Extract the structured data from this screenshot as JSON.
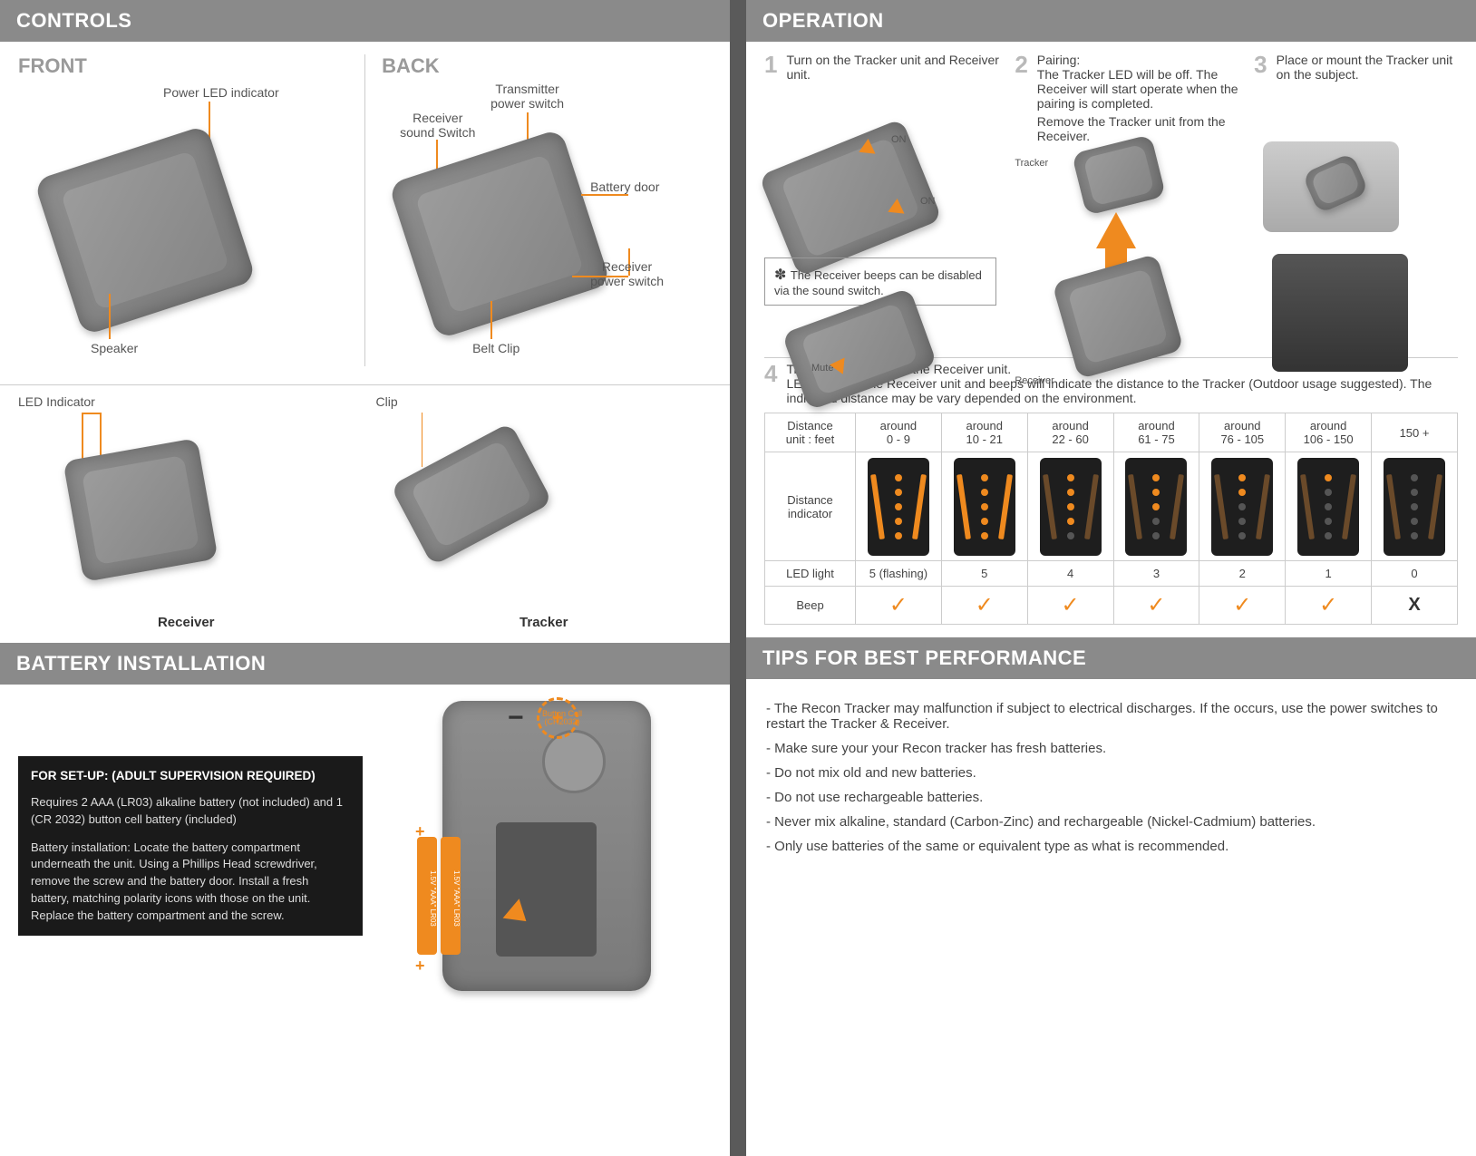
{
  "left": {
    "controls_header": "CONTROLS",
    "front": "FRONT",
    "back": "BACK",
    "front_labels": {
      "power_led": "Power LED indicator",
      "speaker": "Speaker"
    },
    "back_labels": {
      "trans_switch": "Transmitter\npower switch",
      "rcv_sound": "Receiver\nsound Switch",
      "bat_door": "Battery door",
      "rcv_power": "Receiver\npower switch",
      "belt_clip": "Belt Clip"
    },
    "bottom": {
      "led": "LED Indicator",
      "clip": "Clip",
      "receiver": "Receiver",
      "tracker": "Tracker"
    },
    "battery_header": "BATTERY INSTALLATION",
    "bi_title": "FOR SET-UP: (ADULT SUPERVISION REQUIRED)",
    "bi_p1": "Requires 2 AAA (LR03) alkaline battery (not included) and 1 (CR 2032) button cell battery (included)",
    "bi_p2": "Battery installation: Locate the battery compartment underneath the unit. Using a Phillips Head screwdriver, remove the screw and the battery door. Install a fresh battery, matching polarity icons with those on the unit. Replace the battery compartment and the screw.",
    "aaa_label": "1.5V \"AAA\" LR03",
    "button_cell": "Button Cell\n(CR2032)"
  },
  "right": {
    "operation_header": "OPERATION",
    "step1": {
      "num": "1",
      "text": "Turn on the Tracker unit and Receiver unit.",
      "on": "ON",
      "mute": "Mute",
      "note": "The Receiver beeps can be disabled via the sound switch."
    },
    "step2": {
      "num": "2",
      "title": "Pairing:",
      "text": "The Tracker LED will be off. The Receiver will start operate when the pairing is completed.",
      "text2": "Remove the Tracker unit from the Receiver.",
      "tracker": "Tracker",
      "receiver": "Receiver"
    },
    "step3": {
      "num": "3",
      "text": "Place or mount the Tracker unit on the subject."
    },
    "step4": {
      "num": "4",
      "text": "Track the subject with the Receiver unit.",
      "text2": "LED lights on the Receiver unit and beeps will indicate the distance to the Tracker (Outdoor usage suggested). The indicated distance may be vary depended on the environment.",
      "dist_unit": "Distance\nunit : feet",
      "dist_ind": "Distance\nindicator",
      "led_light": "LED light",
      "beep": "Beep",
      "ranges": [
        "around\n0 - 9",
        "around\n10 - 21",
        "around\n22 - 60",
        "around\n61 - 75",
        "around\n76 - 105",
        "around\n106 - 150",
        "150 +"
      ],
      "leds": [
        "5 (flashing)",
        "5",
        "4",
        "3",
        "2",
        "1",
        "0"
      ],
      "beeps": [
        "check",
        "check",
        "check",
        "check",
        "check",
        "check",
        "x"
      ],
      "dot_counts": [
        5,
        5,
        4,
        3,
        2,
        1,
        0
      ]
    },
    "tips_header": "TIPS FOR BEST PERFORMANCE",
    "tips": [
      "- The Recon Tracker may malfunction if subject to electrical discharges. If the occurs, use the power switches to restart the Tracker & Receiver.",
      "- Make sure your your Recon tracker has fresh batteries.",
      "- Do not mix old and new batteries.",
      "- Do not use rechargeable batteries.",
      "- Never mix alkaline, standard (Carbon-Zinc) and rechargeable (Nickel-Cadmium) batteries.",
      "- Only use batteries of the same or equivalent type as what is recommended."
    ]
  },
  "colors": {
    "accent": "#ef8a1f",
    "header_bg": "#8a8a8a"
  }
}
